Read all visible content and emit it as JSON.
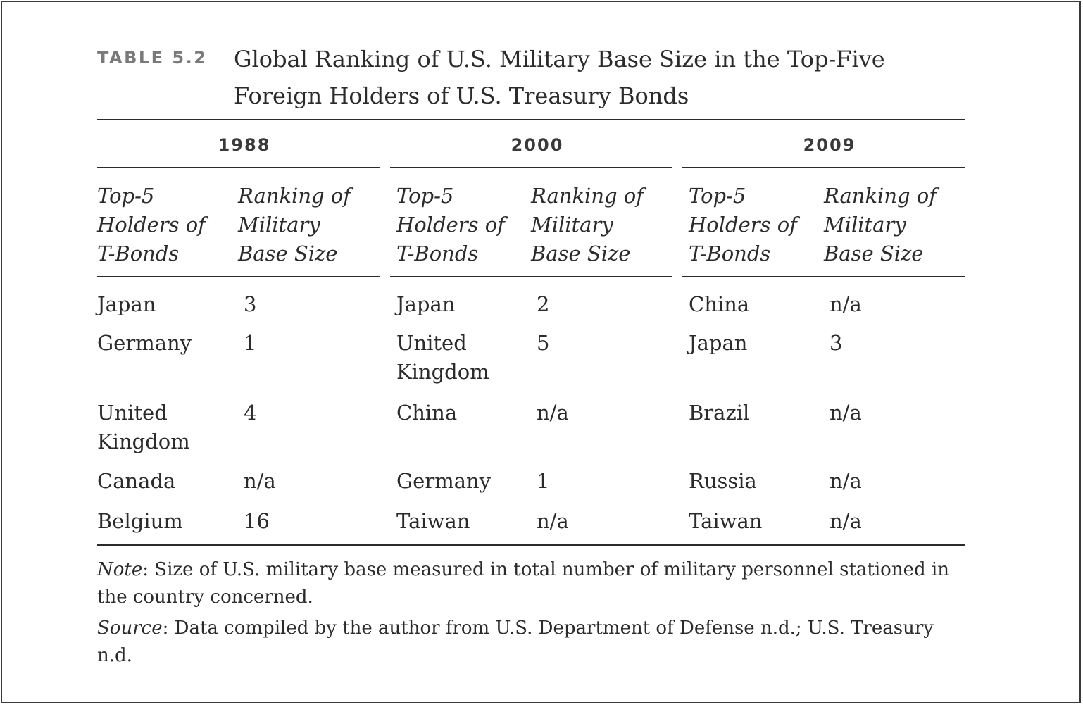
{
  "table": {
    "label": "TABLE 5.2",
    "title_line1": "Global Ranking of U.S. Military Base Size in the Top-Five",
    "title_line2": "Foreign Holders of U.S. Treasury Bonds",
    "groups": [
      {
        "year": "1988",
        "col1": [
          "Top-5",
          "Holders of",
          "T-Bonds"
        ],
        "col2": [
          "Ranking of",
          "Military",
          "Base Size"
        ],
        "rows": [
          {
            "country": [
              "Japan"
            ],
            "rank": "3"
          },
          {
            "country": [
              "Germany"
            ],
            "rank": "1"
          },
          {
            "country": [
              "United",
              "Kingdom"
            ],
            "rank": "4"
          },
          {
            "country": [
              "Canada"
            ],
            "rank": "n/a"
          },
          {
            "country": [
              "Belgium"
            ],
            "rank": "16"
          }
        ]
      },
      {
        "year": "2000",
        "col1": [
          "Top-5",
          "Holders of",
          "T-Bonds"
        ],
        "col2": [
          "Ranking of",
          "Military",
          "Base Size"
        ],
        "rows": [
          {
            "country": [
              "Japan"
            ],
            "rank": "2"
          },
          {
            "country": [
              "United",
              "Kingdom"
            ],
            "rank": "5"
          },
          {
            "country": [
              "China"
            ],
            "rank": "n/a"
          },
          {
            "country": [
              "Germany"
            ],
            "rank": "1"
          },
          {
            "country": [
              "Taiwan"
            ],
            "rank": "n/a"
          }
        ]
      },
      {
        "year": "2009",
        "col1": [
          "Top-5",
          "Holders of",
          "T-Bonds"
        ],
        "col2": [
          "Ranking of",
          "Military",
          "Base Size"
        ],
        "rows": [
          {
            "country": [
              "China"
            ],
            "rank": "n/a"
          },
          {
            "country": [
              "Japan"
            ],
            "rank": "3"
          },
          {
            "country": [
              "Brazil"
            ],
            "rank": "n/a"
          },
          {
            "country": [
              "Russia"
            ],
            "rank": "n/a"
          },
          {
            "country": [
              "Taiwan"
            ],
            "rank": "n/a"
          }
        ]
      }
    ],
    "note_label": "Note",
    "note_text": ": Size of U.S. military base measured in total number of military personnel stationed in the country concerned.",
    "source_label": "Source",
    "source_text": ": Data compiled by the author from U.S. Department of Defense n.d.; U.S. Treasury n.d."
  }
}
